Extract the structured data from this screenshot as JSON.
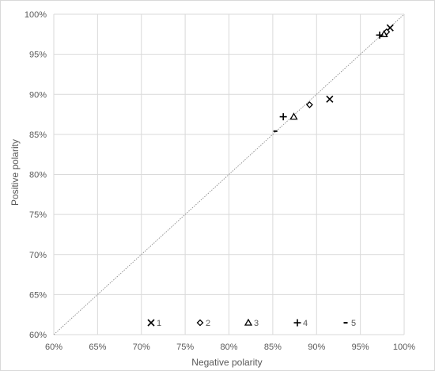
{
  "chart_data": {
    "type": "scatter",
    "title": "",
    "xlabel": "Negative polarity",
    "ylabel": "Positive polarity",
    "xlim": [
      0.6,
      1.0
    ],
    "ylim": [
      0.6,
      1.0
    ],
    "x_ticks": [
      0.6,
      0.65,
      0.7,
      0.75,
      0.8,
      0.85,
      0.9,
      0.95,
      1.0
    ],
    "y_ticks": [
      0.6,
      0.65,
      0.7,
      0.75,
      0.8,
      0.85,
      0.9,
      0.95,
      1.0
    ],
    "x_tick_labels": [
      "60%",
      "65%",
      "70%",
      "75%",
      "80%",
      "85%",
      "90%",
      "95%",
      "100%"
    ],
    "y_tick_labels": [
      "60%",
      "65%",
      "70%",
      "75%",
      "80%",
      "85%",
      "90%",
      "95%",
      "100%"
    ],
    "grid": true,
    "reference_line": "y = x",
    "legend_position": "bottom",
    "series": [
      {
        "name": "1",
        "marker": "x",
        "points": [
          [
            0.915,
            0.894
          ],
          [
            0.984,
            0.983
          ]
        ]
      },
      {
        "name": "2",
        "marker": "diamond",
        "points": [
          [
            0.892,
            0.887
          ],
          [
            0.98,
            0.978
          ]
        ]
      },
      {
        "name": "3",
        "marker": "triangle",
        "points": [
          [
            0.874,
            0.872
          ],
          [
            0.977,
            0.975
          ]
        ]
      },
      {
        "name": "4",
        "marker": "plus",
        "points": [
          [
            0.862,
            0.872
          ],
          [
            0.972,
            0.974
          ]
        ]
      },
      {
        "name": "5",
        "marker": "dash",
        "points": [
          [
            0.853,
            0.854
          ]
        ]
      }
    ],
    "colors": {
      "marker": "#000000",
      "grid": "#d9d9d9",
      "diagonal": "#8c8c8c",
      "text": "#595959"
    }
  }
}
